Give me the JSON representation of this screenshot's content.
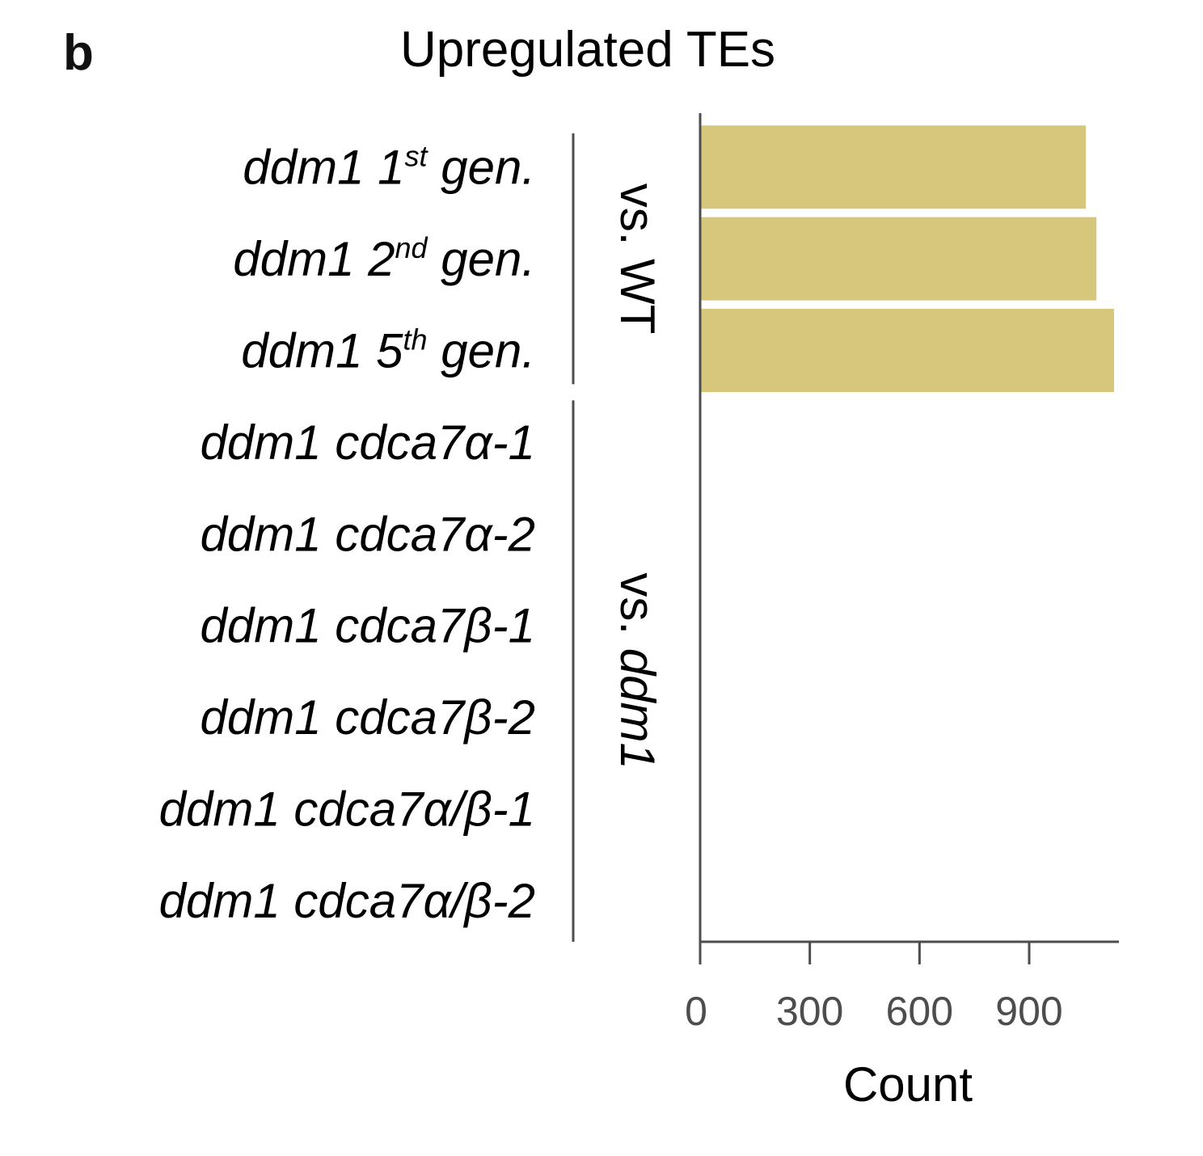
{
  "panel_letter": "b",
  "chart_data": {
    "type": "bar",
    "orientation": "horizontal",
    "title": "Upregulated TEs",
    "xlabel": "Count",
    "ylabel": "",
    "xlim": [
      0,
      1143
    ],
    "xticks": [
      0,
      300,
      600,
      900
    ],
    "categories": [
      {
        "main": "ddm1 1",
        "sup": "st",
        "tail": " gen."
      },
      {
        "main": "ddm1 2",
        "sup": "nd",
        "tail": " gen."
      },
      {
        "main": "ddm1 5",
        "sup": "th",
        "tail": " gen."
      },
      {
        "main": "ddm1 cdca7α-1",
        "sup": "",
        "tail": ""
      },
      {
        "main": "ddm1 cdca7α-2",
        "sup": "",
        "tail": ""
      },
      {
        "main": "ddm1 cdca7β-1",
        "sup": "",
        "tail": ""
      },
      {
        "main": "ddm1 cdca7β-2",
        "sup": "",
        "tail": ""
      },
      {
        "main": "ddm1 cdca7α/β-1",
        "sup": "",
        "tail": ""
      },
      {
        "main": "ddm1 cdca7α/β-2",
        "sup": "",
        "tail": ""
      }
    ],
    "values": [
      1055,
      1084,
      1132,
      0,
      3,
      0,
      0,
      0,
      0
    ],
    "bar_colors": [
      "#d7c77c",
      "#d7c77c",
      "#d7c77c",
      "#2b2bb0",
      "#2b2bb0",
      "#2b2bb0",
      "#2b2bb0",
      "#2b2bb0",
      "#2b2bb0"
    ],
    "groups": [
      {
        "label_plain": "vs. ",
        "label_italic": "WT",
        "italic": false,
        "rows": [
          0,
          2
        ]
      },
      {
        "label_plain": "vs. ",
        "label_italic": "ddm1",
        "italic": true,
        "rows": [
          3,
          8
        ]
      }
    ],
    "grid": false
  }
}
